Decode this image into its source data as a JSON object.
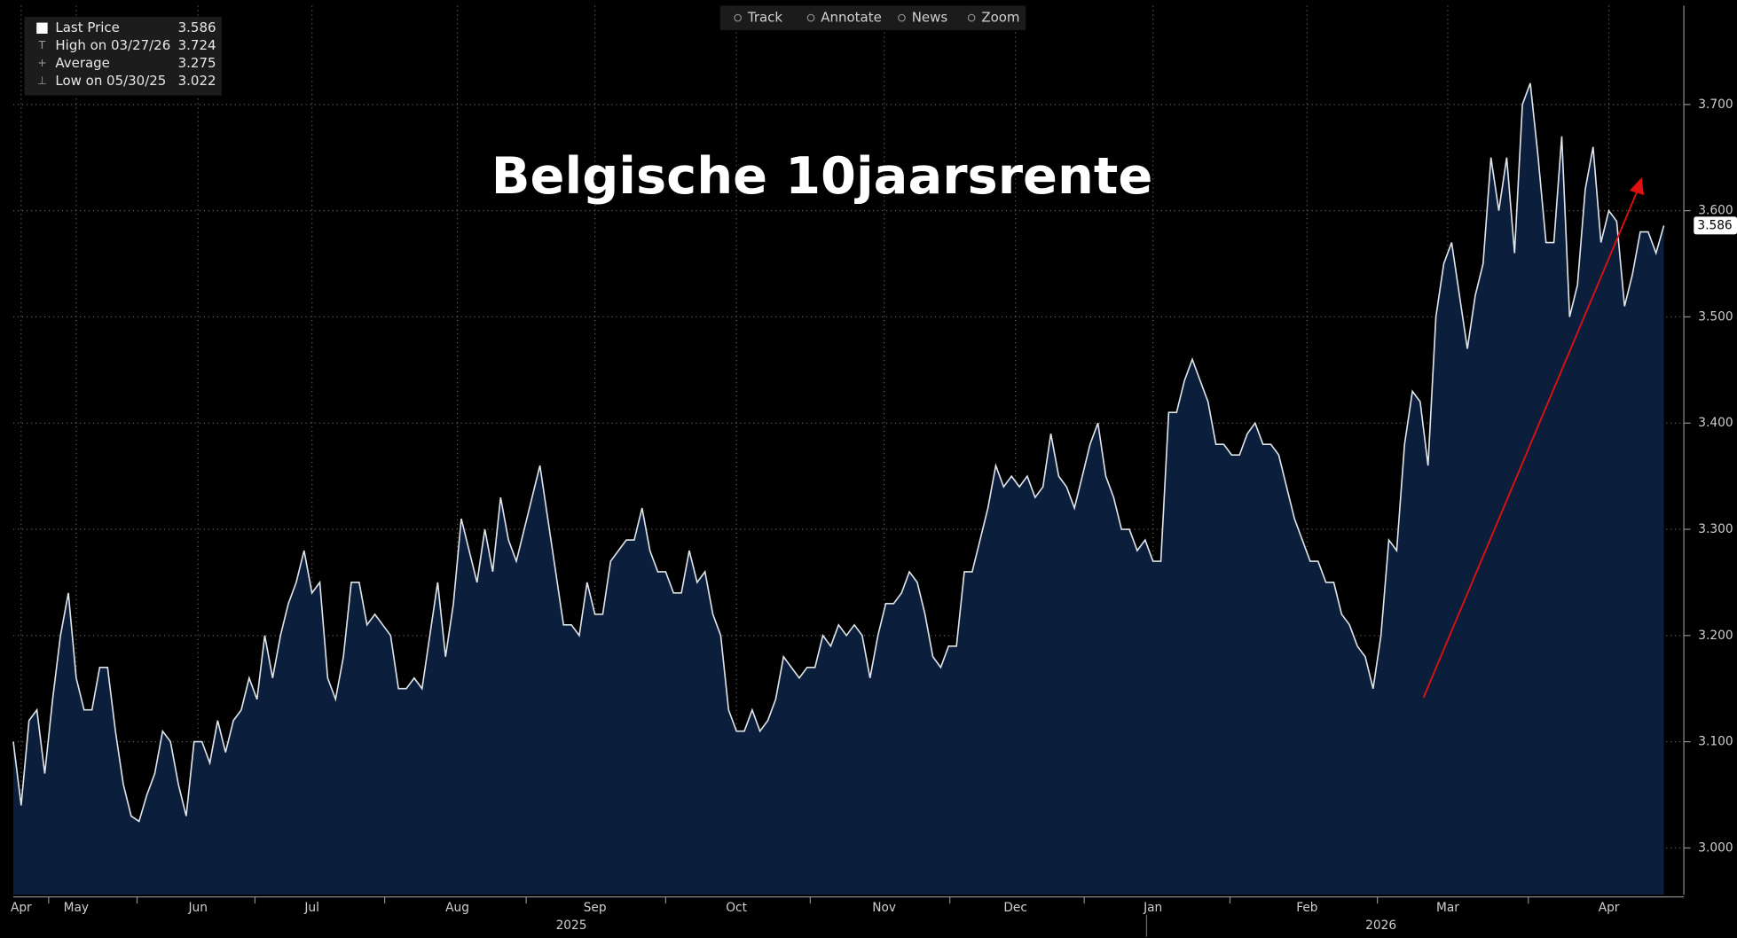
{
  "chart_data": {
    "type": "area",
    "title": "Belgische 10jaarsrente",
    "toolbar": [
      "Track",
      "Annotate",
      "News",
      "Zoom"
    ],
    "legend": [
      {
        "label": "Last Price",
        "value": 3.586
      },
      {
        "label": "High on 03/27/26",
        "value": 3.724
      },
      {
        "label": "Average",
        "value": 3.275
      },
      {
        "label": "Low on 05/30/25",
        "value": 3.022
      }
    ],
    "color": "#dfe4ea",
    "fill": "#0b1f3d",
    "values": [
      3.1,
      3.04,
      3.12,
      3.13,
      3.07,
      3.14,
      3.2,
      3.24,
      3.16,
      3.13,
      3.13,
      3.17,
      3.17,
      3.11,
      3.06,
      3.03,
      3.025,
      3.05,
      3.07,
      3.11,
      3.1,
      3.06,
      3.03,
      3.1,
      3.1,
      3.08,
      3.12,
      3.09,
      3.12,
      3.13,
      3.16,
      3.14,
      3.2,
      3.16,
      3.2,
      3.23,
      3.25,
      3.28,
      3.24,
      3.25,
      3.16,
      3.14,
      3.18,
      3.25,
      3.25,
      3.21,
      3.22,
      3.21,
      3.2,
      3.15,
      3.15,
      3.16,
      3.15,
      3.2,
      3.25,
      3.18,
      3.23,
      3.31,
      3.28,
      3.25,
      3.3,
      3.26,
      3.33,
      3.29,
      3.27,
      3.3,
      3.33,
      3.36,
      3.31,
      3.26,
      3.21,
      3.21,
      3.2,
      3.25,
      3.22,
      3.22,
      3.27,
      3.28,
      3.29,
      3.29,
      3.32,
      3.28,
      3.26,
      3.26,
      3.24,
      3.24,
      3.28,
      3.25,
      3.26,
      3.22,
      3.2,
      3.13,
      3.11,
      3.11,
      3.13,
      3.11,
      3.12,
      3.14,
      3.18,
      3.17,
      3.16,
      3.17,
      3.17,
      3.2,
      3.19,
      3.21,
      3.2,
      3.21,
      3.2,
      3.16,
      3.2,
      3.23,
      3.23,
      3.24,
      3.26,
      3.25,
      3.22,
      3.18,
      3.17,
      3.19,
      3.19,
      3.26,
      3.26,
      3.29,
      3.32,
      3.36,
      3.34,
      3.35,
      3.34,
      3.35,
      3.33,
      3.34,
      3.39,
      3.35,
      3.34,
      3.32,
      3.35,
      3.38,
      3.4,
      3.35,
      3.33,
      3.3,
      3.3,
      3.28,
      3.29,
      3.27,
      3.27,
      3.41,
      3.41,
      3.44,
      3.46,
      3.44,
      3.42,
      3.38,
      3.38,
      3.37,
      3.37,
      3.39,
      3.4,
      3.38,
      3.38,
      3.37,
      3.34,
      3.31,
      3.29,
      3.27,
      3.27,
      3.25,
      3.25,
      3.22,
      3.21,
      3.19,
      3.18,
      3.15,
      3.2,
      3.29,
      3.28,
      3.38,
      3.43,
      3.42,
      3.36,
      3.5,
      3.55,
      3.57,
      3.52,
      3.47,
      3.52,
      3.55,
      3.65,
      3.6,
      3.65,
      3.56,
      3.7,
      3.72,
      3.65,
      3.57,
      3.57,
      3.67,
      3.5,
      3.53,
      3.62,
      3.66,
      3.57,
      3.6,
      3.59,
      3.51,
      3.54,
      3.58,
      3.58,
      3.56,
      3.586
    ],
    "xlim": [
      0,
      210
    ],
    "xticks": [
      {
        "value": 1,
        "label": "Apr"
      },
      {
        "value": 8,
        "label": "May"
      },
      {
        "value": 23.5,
        "label": "Jun"
      },
      {
        "value": 38,
        "label": "Jul"
      },
      {
        "value": 56.5,
        "label": "Aug"
      },
      {
        "value": 74,
        "label": "Sep"
      },
      {
        "value": 92,
        "label": "Oct"
      },
      {
        "value": 110.8,
        "label": "Nov"
      },
      {
        "value": 127.5,
        "label": "Dec"
      },
      {
        "value": 145,
        "label": "Jan"
      },
      {
        "value": 164.6,
        "label": "Feb"
      },
      {
        "value": 182.5,
        "label": "Mar"
      },
      {
        "value": 203,
        "label": "Apr"
      }
    ],
    "year_labels": [
      {
        "value": 71,
        "label": "2025"
      },
      {
        "value": 174,
        "label": "2026"
      }
    ],
    "ylim": [
      2.956,
      3.793
    ],
    "yticks": [
      {
        "value": 3.0,
        "label": "3.000"
      },
      {
        "value": 3.1,
        "label": "3.100"
      },
      {
        "value": 3.2,
        "label": "3.200"
      },
      {
        "value": 3.3,
        "label": "3.300"
      },
      {
        "value": 3.4,
        "label": "3.400"
      },
      {
        "value": 3.5,
        "label": "3.500"
      },
      {
        "value": 3.6,
        "label": "3.600"
      },
      {
        "value": 3.7,
        "label": "3.700"
      }
    ],
    "grid": true
  }
}
